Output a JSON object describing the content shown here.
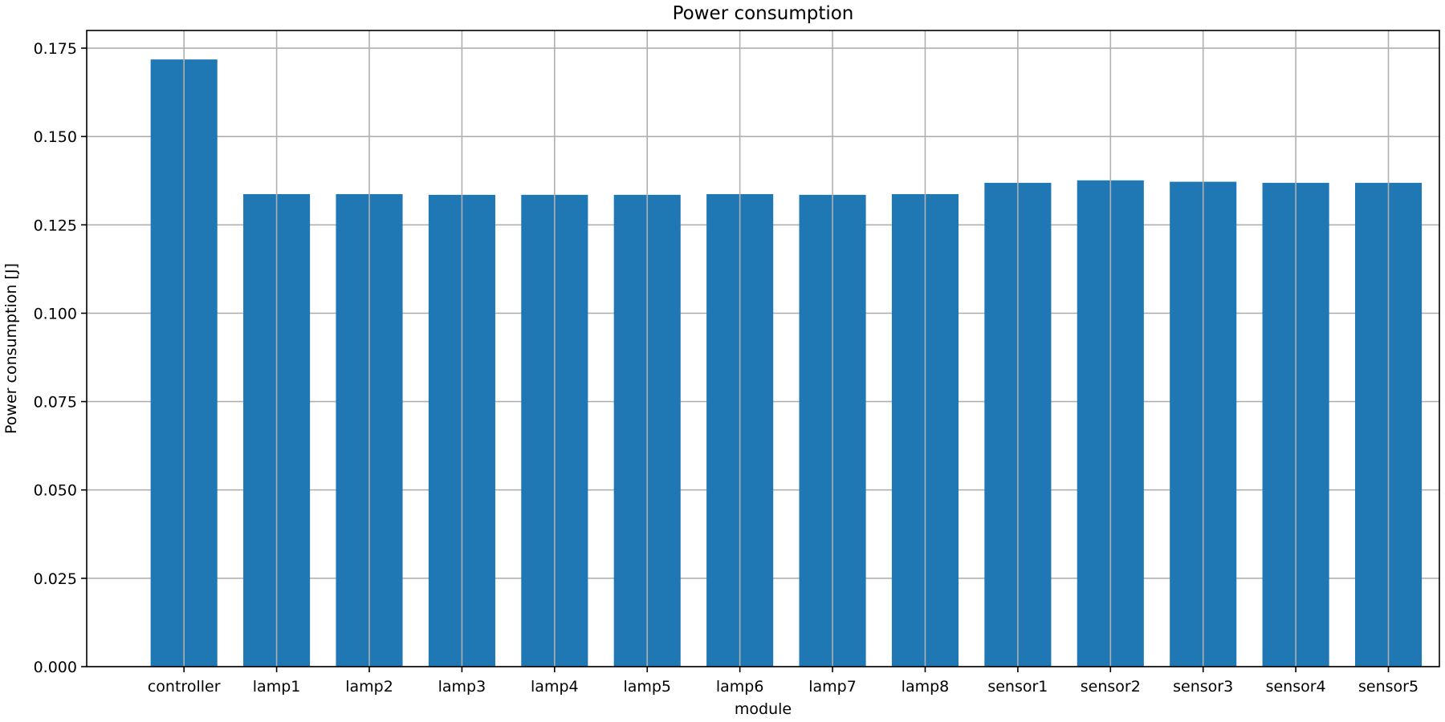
{
  "chart_data": {
    "type": "bar",
    "title": "Power consumption",
    "xlabel": "module",
    "ylabel": "Power consumption [J]",
    "categories": [
      "controller",
      "lamp1",
      "lamp2",
      "lamp3",
      "lamp4",
      "lamp5",
      "lamp6",
      "lamp7",
      "lamp8",
      "sensor1",
      "sensor2",
      "sensor3",
      "sensor4",
      "sensor5"
    ],
    "values": [
      0.1718,
      0.1337,
      0.1337,
      0.1335,
      0.1335,
      0.1335,
      0.1337,
      0.1335,
      0.1337,
      0.1369,
      0.1376,
      0.1372,
      0.1369,
      0.1369
    ],
    "ylim": [
      0,
      0.18
    ],
    "yticks": [
      "0.000",
      "0.025",
      "0.050",
      "0.075",
      "0.100",
      "0.125",
      "0.150",
      "0.175"
    ],
    "grid": true,
    "bar_color": "#1f77b4",
    "grid_color": "#b0b0b0"
  }
}
